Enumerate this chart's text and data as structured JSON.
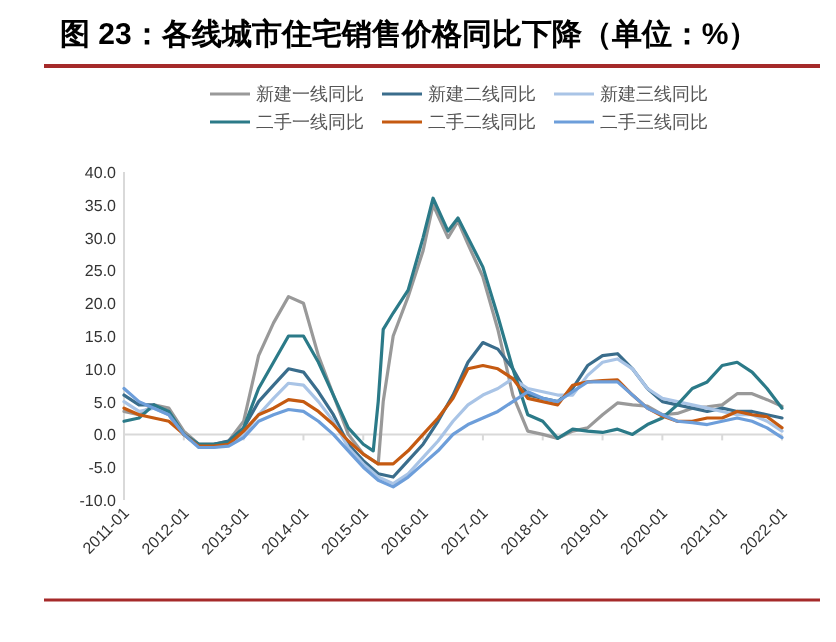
{
  "chart_data": {
    "type": "line",
    "title": "图 23：各线城市住宅销售价格同比下降（单位：%）",
    "legend": "top",
    "grid": false,
    "marker": "none",
    "line_style": "solid",
    "xlim": [
      "2011-01",
      "2022-01"
    ],
    "xticks": [
      {
        "value": "2011-01",
        "label": "2011-01"
      },
      {
        "value": "2012-01",
        "label": "2012-01"
      },
      {
        "value": "2013-01",
        "label": "2013-01"
      },
      {
        "value": "2014-01",
        "label": "2014-01"
      },
      {
        "value": "2015-01",
        "label": "2015-01"
      },
      {
        "value": "2016-01",
        "label": "2016-01"
      },
      {
        "value": "2017-01",
        "label": "2017-01"
      },
      {
        "value": "2018-01",
        "label": "2018-01"
      },
      {
        "value": "2019-01",
        "label": "2019-01"
      },
      {
        "value": "2020-01",
        "label": "2020-01"
      },
      {
        "value": "2021-01",
        "label": "2021-01"
      },
      {
        "value": "2022-01",
        "label": "2022-01"
      }
    ],
    "ylim": [
      -10,
      40
    ],
    "ref_lines": [
      {
        "axis": "y",
        "value": 0,
        "color": "#d9d9d9"
      }
    ],
    "yticks": [
      {
        "value": -10,
        "label": "-10.0"
      },
      {
        "value": -5,
        "label": "-5.0"
      },
      {
        "value": 0,
        "label": "0.0"
      },
      {
        "value": 5,
        "label": "5.0"
      },
      {
        "value": 10,
        "label": "10.0"
      },
      {
        "value": 15,
        "label": "15.0"
      },
      {
        "value": 20,
        "label": "20.0"
      },
      {
        "value": 25,
        "label": "25.0"
      },
      {
        "value": 30,
        "label": "30.0"
      },
      {
        "value": 35,
        "label": "35.0"
      },
      {
        "value": 40,
        "label": "40.0"
      }
    ],
    "x": [
      "2011-01",
      "2011-04",
      "2011-07",
      "2011-10",
      "2012-01",
      "2012-04",
      "2012-07",
      "2012-10",
      "2013-01",
      "2013-04",
      "2013-07",
      "2013-10",
      "2014-01",
      "2014-04",
      "2014-07",
      "2014-10",
      "2015-01",
      "2015-04",
      "2015-07",
      "2015-10",
      "2016-01",
      "2016-04",
      "2016-07",
      "2016-10",
      "2017-01",
      "2017-04",
      "2017-07",
      "2017-10",
      "2018-01",
      "2018-04",
      "2018-07",
      "2018-10",
      "2019-01",
      "2019-04",
      "2019-07",
      "2019-10",
      "2020-01",
      "2020-04",
      "2020-07",
      "2020-10",
      "2021-01",
      "2021-04",
      "2021-07",
      "2021-10",
      "2022-01"
    ],
    "series": [
      {
        "name": "新建一线同比",
        "color": "#999999",
        "x": [
          "2011-01",
          "2011-04",
          "2011-07",
          "2011-10",
          "2012-01",
          "2012-04",
          "2012-07",
          "2012-10",
          "2013-01",
          "2013-04",
          "2013-07",
          "2013-10",
          "2014-01",
          "2014-04",
          "2014-07",
          "2014-10",
          "2015-01",
          "2015-04",
          "2015-05",
          "2015-07",
          "2015-10",
          "2016-01",
          "2016-03",
          "2016-06",
          "2016-08",
          "2016-10",
          "2017-01",
          "2017-04",
          "2017-07",
          "2017-10",
          "2018-01",
          "2018-04",
          "2018-07",
          "2018-10",
          "2019-01",
          "2019-04",
          "2019-07",
          "2019-10",
          "2020-01",
          "2020-04",
          "2020-07",
          "2020-10",
          "2021-01",
          "2021-04",
          "2021-07",
          "2021-10",
          "2022-01"
        ],
        "values": [
          3.5,
          3,
          4.5,
          4,
          0.5,
          -1.5,
          -1.5,
          -1,
          2,
          12,
          17,
          21,
          20,
          12,
          6,
          0,
          -3,
          -4.5,
          5,
          15,
          21,
          28,
          35,
          30,
          32.5,
          29,
          24,
          16,
          6,
          0.5,
          0,
          -0.6,
          0.5,
          1,
          3,
          4.8,
          4.5,
          4.3,
          3,
          3.2,
          4,
          4.2,
          4.5,
          6.2,
          6.2,
          5.3,
          4.3
        ]
      },
      {
        "name": "新建二线同比",
        "color": "#3a6d8c",
        "values": [
          6,
          4.5,
          4.5,
          3,
          0,
          -1.5,
          -1.5,
          -1,
          1,
          5,
          7.5,
          10,
          9.5,
          6.5,
          3,
          -1.5,
          -4,
          -6,
          -6.5,
          -4,
          -1.5,
          2,
          6,
          11,
          14,
          13,
          10,
          6,
          5.5,
          5,
          7,
          10.5,
          12,
          12.3,
          10,
          7,
          5,
          4.5,
          4,
          3.5,
          4,
          3.5,
          3.5,
          3,
          2.5
        ]
      },
      {
        "name": "新建三线同比",
        "color": "#a9c4e6",
        "values": [
          5,
          3.5,
          4,
          3,
          0,
          -1.8,
          -2,
          -1.5,
          0,
          3,
          5.5,
          7.8,
          7.5,
          5,
          2,
          -2,
          -4.5,
          -6.5,
          -7.5,
          -6,
          -3.5,
          -1,
          2,
          4.5,
          6,
          7,
          8.5,
          7,
          6.5,
          6,
          6,
          9,
          11,
          11.5,
          10,
          7,
          5.5,
          5,
          4.5,
          4,
          3.5,
          3,
          3,
          2,
          0.5
        ]
      },
      {
        "name": "二手一线同比",
        "color": "#2b7a88",
        "x": [
          "2011-01",
          "2011-04",
          "2011-07",
          "2011-10",
          "2012-01",
          "2012-04",
          "2012-07",
          "2012-10",
          "2013-01",
          "2013-04",
          "2013-07",
          "2013-10",
          "2014-01",
          "2014-04",
          "2014-07",
          "2014-10",
          "2015-01",
          "2015-03",
          "2015-04",
          "2015-05",
          "2015-07",
          "2015-10",
          "2016-01",
          "2016-03",
          "2016-06",
          "2016-08",
          "2016-10",
          "2017-01",
          "2017-04",
          "2017-07",
          "2017-10",
          "2018-01",
          "2018-04",
          "2018-07",
          "2018-10",
          "2019-01",
          "2019-04",
          "2019-07",
          "2019-10",
          "2020-01",
          "2020-04",
          "2020-07",
          "2020-10",
          "2021-01",
          "2021-04",
          "2021-07",
          "2021-10",
          "2022-01"
        ],
        "values": [
          2,
          2.5,
          4.5,
          3.5,
          0,
          -1.5,
          -1.5,
          -1.2,
          1,
          7,
          11,
          15,
          15,
          11,
          6,
          1,
          -1.5,
          -2.5,
          5,
          16,
          18.5,
          22,
          30,
          36,
          31,
          33,
          30,
          25.5,
          18,
          10,
          3,
          2,
          -0.6,
          0.8,
          0.5,
          0.3,
          0.8,
          0,
          1.5,
          2.5,
          4.5,
          7,
          8,
          10.5,
          11,
          9.5,
          7,
          4
        ]
      },
      {
        "name": "二手二线同比",
        "color": "#c55a11",
        "values": [
          4,
          3,
          2.5,
          2,
          0,
          -1.8,
          -1.8,
          -1.5,
          0.5,
          3,
          4,
          5.3,
          5,
          3.5,
          1.5,
          -1,
          -3,
          -4.5,
          -4.5,
          -2.5,
          0,
          2.5,
          5.5,
          10,
          10.5,
          10,
          8.5,
          5.5,
          5,
          4.5,
          7.5,
          8,
          8.2,
          8.3,
          6,
          4,
          2.8,
          2,
          2,
          2.5,
          2.5,
          3.5,
          3,
          2.7,
          1
        ]
      },
      {
        "name": "二手三线同比",
        "color": "#6d9eda",
        "values": [
          7,
          5,
          4,
          3,
          0,
          -2,
          -2,
          -1.8,
          -0.5,
          2,
          3,
          3.8,
          3.5,
          2,
          0,
          -2.5,
          -5,
          -7,
          -8,
          -6.5,
          -4.5,
          -2.5,
          0,
          1.5,
          2.5,
          3.5,
          5,
          6.5,
          5.5,
          5,
          6.5,
          8,
          8,
          8,
          6,
          4,
          3,
          2,
          1.8,
          1.5,
          2,
          2.5,
          2,
          1,
          -0.5
        ]
      }
    ]
  }
}
